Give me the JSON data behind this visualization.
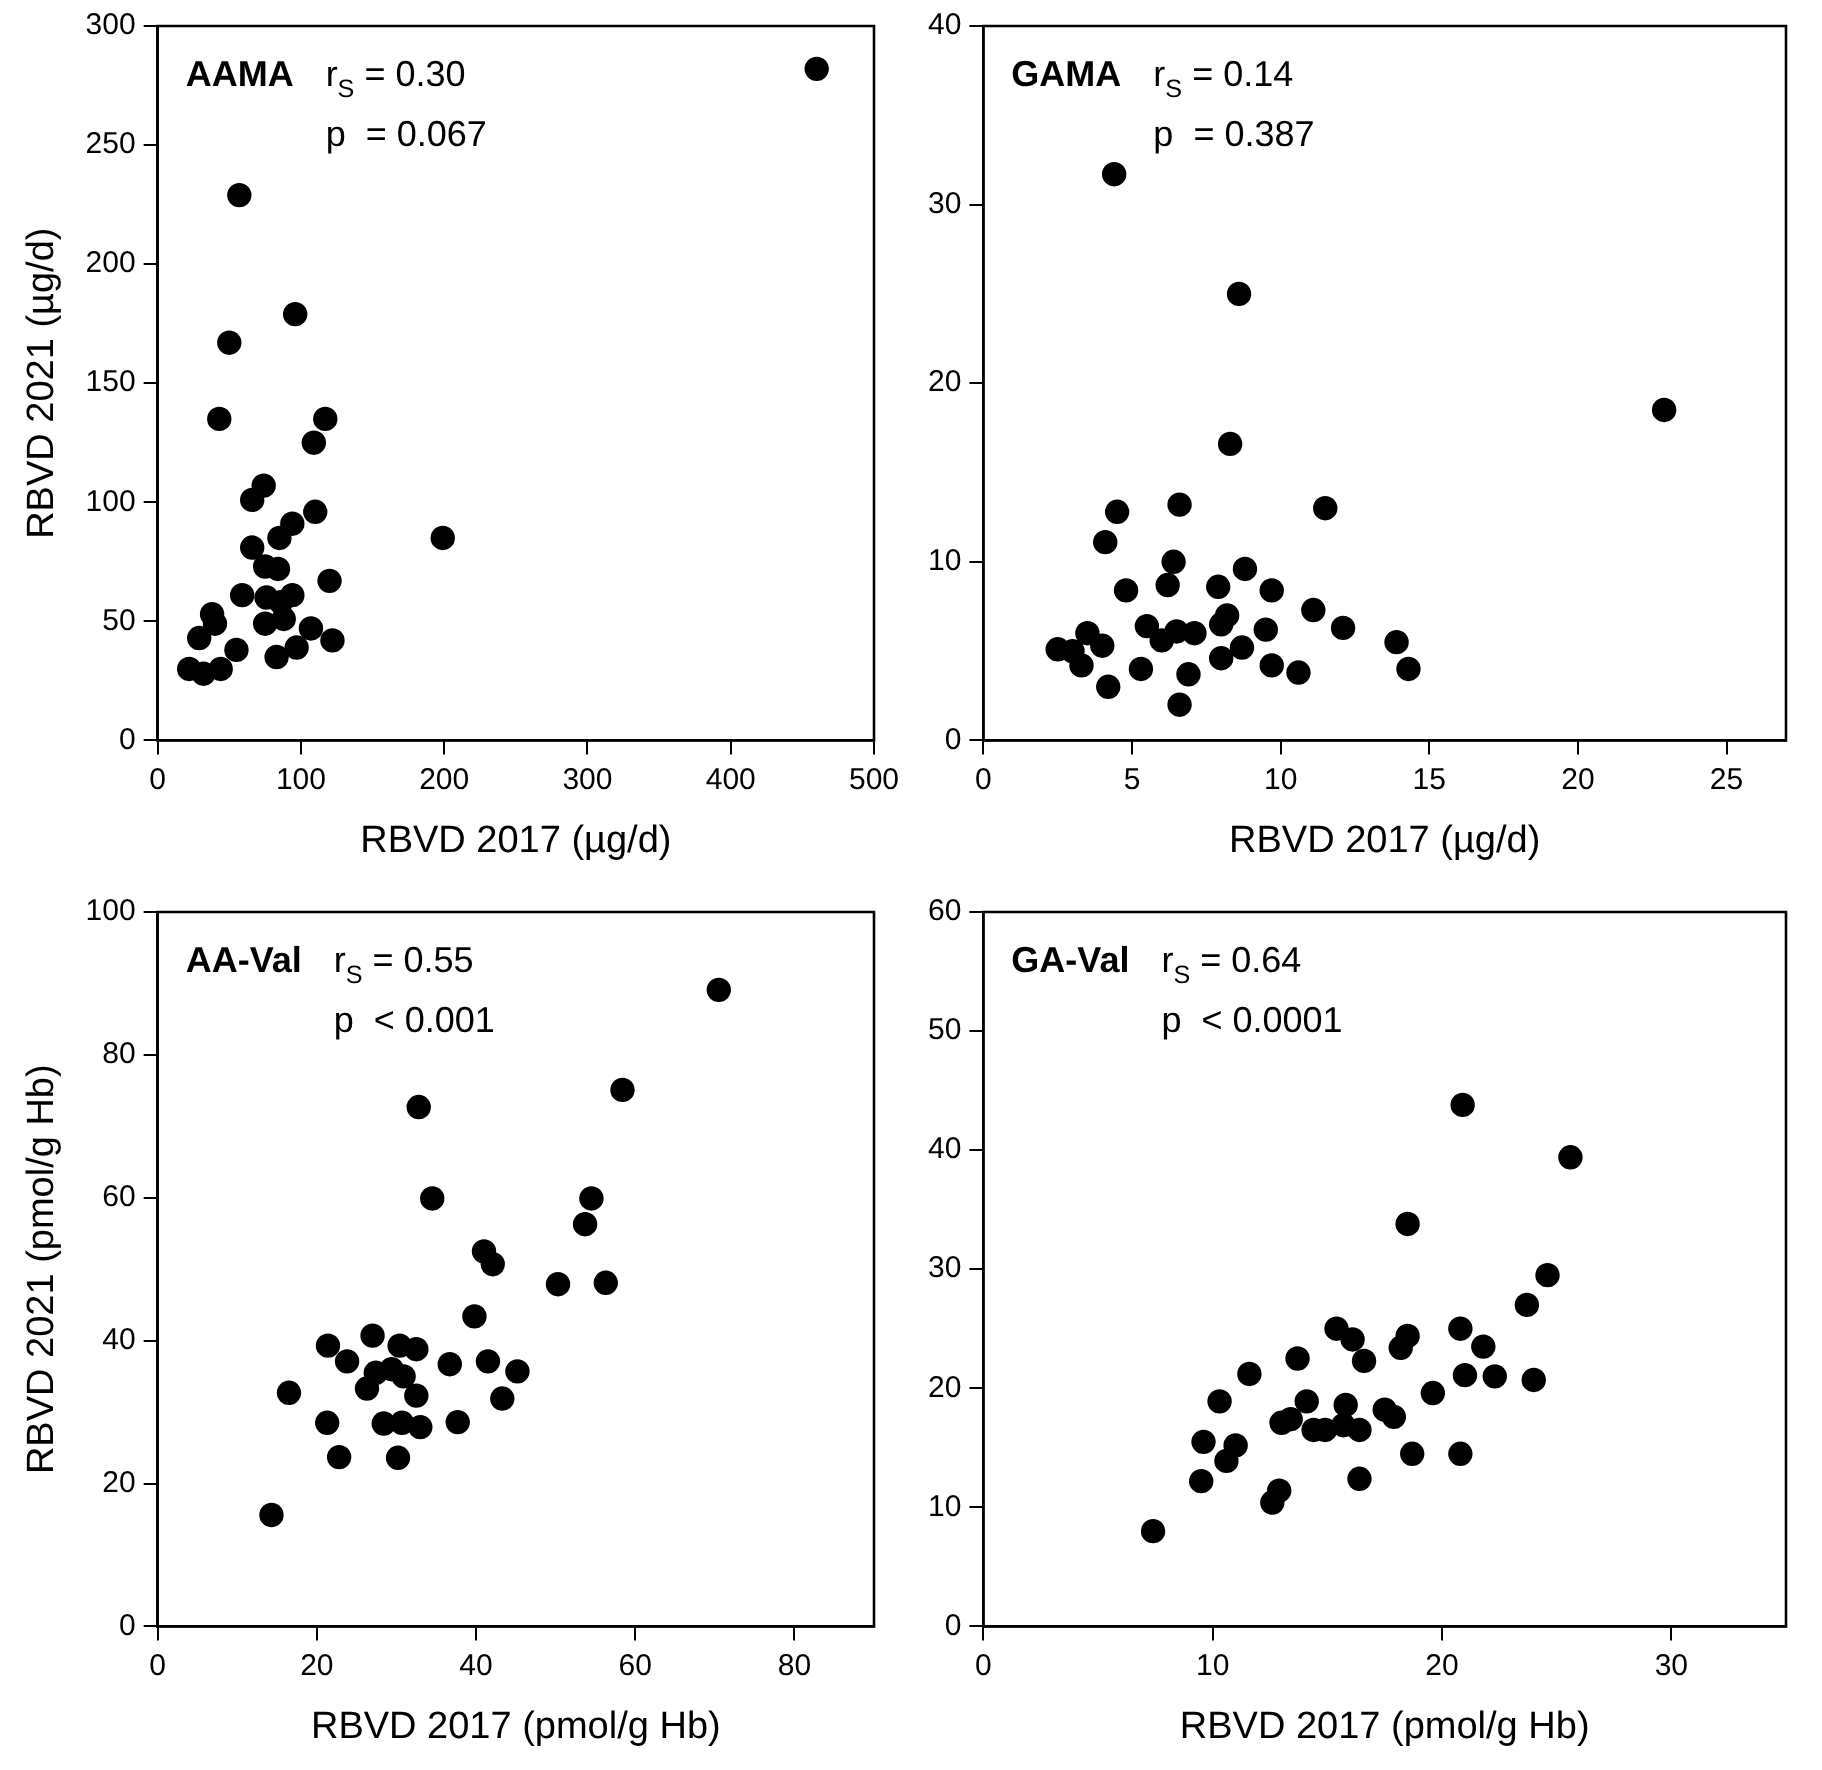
{
  "chart_data": [
    {
      "type": "scatter",
      "xlabel": "RBVD 2017 (µg/d)",
      "ylabel": "RBVD 2021 (µg/d)",
      "annotations": [
        "AAMA",
        "r$_{S}$ = 0.30",
        "p  = 0.067"
      ],
      "xlim": [
        0,
        500
      ],
      "xticks": [
        0,
        100,
        200,
        300,
        400,
        500
      ],
      "ylim": [
        0,
        300
      ],
      "yticks": [
        0,
        50,
        100,
        150,
        200,
        250,
        300
      ],
      "grid": false,
      "legend": false,
      "marker": "circle",
      "series": [
        {
          "color": "#000000",
          "x": [
            460,
            57,
            96,
            50,
            43,
            117,
            109,
            74,
            66,
            110,
            94,
            85,
            199,
            66,
            75,
            84,
            120,
            59,
            76,
            94,
            86,
            38,
            40,
            75,
            88,
            29,
            107,
            122,
            97,
            55,
            83,
            44,
            22,
            32
          ],
          "values": [
            282,
            229,
            179,
            167,
            135,
            135,
            125,
            107,
            101,
            96,
            91,
            85,
            85,
            81,
            73,
            72,
            67,
            61,
            60,
            61,
            58,
            53,
            49,
            49,
            51,
            43,
            47,
            42,
            39,
            38,
            35,
            30,
            30,
            28
          ]
        }
      ]
    },
    {
      "type": "scatter",
      "xlabel": "RBVD 2017 (µg/d)",
      "annotations": [
        "GAMA",
        "r$_{S}$ = 0.14",
        "p  = 0.387"
      ],
      "xlim": [
        0,
        27
      ],
      "xticks": [
        0,
        5,
        10,
        15,
        20,
        25
      ],
      "ylim": [
        0,
        40
      ],
      "yticks": [
        0,
        10,
        20,
        30,
        40
      ],
      "grid": false,
      "legend": false,
      "marker": "circle",
      "series": [
        {
          "color": "#000000",
          "x": [
            4.4,
            8.6,
            22.9,
            8.3,
            6.6,
            4.5,
            11.5,
            4.1,
            6.4,
            8.8,
            6.2,
            4.8,
            7.9,
            9.7,
            11.1,
            8.2,
            5.5,
            8.0,
            7.1,
            6.5,
            6.0,
            9.5,
            12.1,
            3.5,
            4.0,
            2.5,
            3.0,
            3.3,
            13.9,
            14.3,
            8.7,
            5.3,
            8.0,
            9.7,
            10.6,
            6.9,
            4.2,
            6.6
          ],
          "values": [
            31.7,
            25.0,
            18.5,
            16.6,
            13.2,
            12.8,
            13.0,
            11.1,
            10.0,
            9.6,
            8.7,
            8.4,
            8.6,
            8.4,
            7.3,
            7.0,
            6.4,
            6.5,
            6.0,
            6.1,
            5.6,
            6.2,
            6.3,
            6.0,
            5.3,
            5.1,
            5.0,
            4.2,
            5.5,
            4.0,
            5.2,
            4.0,
            4.6,
            4.2,
            3.8,
            3.7,
            3.0,
            2.0
          ]
        }
      ]
    },
    {
      "type": "scatter",
      "xlabel": "RBVD 2017 (pmol/g Hb)",
      "ylabel": "RBVD 2021 (pmol/g Hb)",
      "annotations": [
        "AA-Val",
        "r$_{S}$ = 0.55",
        "p  < 0.001"
      ],
      "xlim": [
        0,
        90
      ],
      "xticks": [
        0,
        20,
        40,
        60,
        80
      ],
      "ylim": [
        0,
        100
      ],
      "yticks": [
        0,
        20,
        40,
        60,
        80,
        100
      ],
      "grid": false,
      "legend": false,
      "marker": "circle",
      "series": [
        {
          "color": "#000000",
          "x": [
            70.5,
            58.4,
            32.8,
            34.5,
            54.5,
            53.7,
            41.0,
            42.1,
            50.3,
            56.3,
            39.8,
            27.0,
            21.4,
            30.4,
            32.5,
            23.8,
            36.7,
            41.5,
            45.2,
            27.4,
            29.4,
            30.9,
            26.3,
            16.5,
            32.5,
            43.3,
            21.3,
            28.4,
            30.7,
            33.0,
            37.7,
            22.8,
            30.2,
            14.3
          ],
          "values": [
            89.1,
            75.1,
            72.7,
            59.9,
            59.9,
            56.3,
            52.5,
            50.7,
            47.9,
            48.1,
            43.4,
            40.7,
            39.3,
            39.3,
            38.8,
            37.1,
            36.7,
            37.1,
            35.7,
            35.5,
            36.0,
            35.0,
            33.3,
            32.7,
            32.3,
            31.9,
            28.5,
            28.4,
            28.5,
            27.9,
            28.6,
            23.7,
            23.6,
            15.6
          ]
        }
      ]
    },
    {
      "type": "scatter",
      "xlabel": "RBVD 2017 (pmol/g Hb)",
      "annotations": [
        "GA-Val",
        "r$_{S}$ = 0.64",
        "p  < 0.0001"
      ],
      "xlim": [
        0,
        35
      ],
      "xticks": [
        0,
        10,
        20,
        30
      ],
      "ylim": [
        0,
        60
      ],
      "yticks": [
        0,
        10,
        20,
        30,
        40,
        50,
        60
      ],
      "grid": false,
      "legend": false,
      "marker": "circle",
      "series": [
        {
          "color": "#000000",
          "x": [
            20.9,
            25.6,
            18.5,
            24.6,
            23.7,
            15.4,
            20.8,
            16.1,
            18.5,
            18.2,
            21.8,
            13.7,
            16.6,
            11.6,
            21.0,
            22.3,
            24.0,
            19.6,
            10.3,
            14.1,
            15.8,
            17.5,
            17.9,
            13.0,
            13.4,
            14.4,
            14.9,
            15.7,
            16.4,
            9.6,
            11.0,
            10.6,
            18.7,
            20.8,
            9.5,
            16.4,
            12.9,
            12.6,
            7.4
          ],
          "values": [
            43.8,
            39.4,
            33.8,
            29.5,
            27.0,
            25.0,
            25.0,
            24.1,
            24.4,
            23.4,
            23.5,
            22.5,
            22.3,
            21.2,
            21.1,
            21.0,
            20.7,
            19.6,
            18.9,
            18.9,
            18.6,
            18.2,
            17.6,
            17.1,
            17.4,
            16.5,
            16.5,
            16.9,
            16.5,
            15.5,
            15.2,
            13.9,
            14.5,
            14.5,
            12.2,
            12.4,
            11.4,
            10.4,
            8.0
          ]
        }
      ]
    }
  ]
}
